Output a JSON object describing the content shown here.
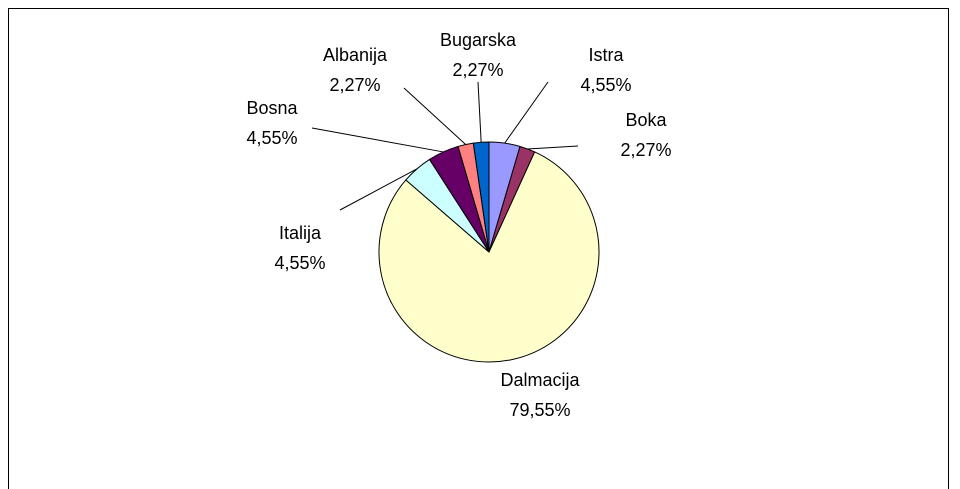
{
  "chart_data": {
    "type": "pie",
    "categories": [
      "Istra",
      "Boka",
      "Dalmacija",
      "Italija",
      "Bosna",
      "Albanija",
      "Bugarska"
    ],
    "values": [
      4.55,
      2.27,
      79.55,
      4.55,
      4.55,
      2.27,
      2.27
    ],
    "value_labels": [
      "4,55%",
      "2,27%",
      "79,55%",
      "4,55%",
      "4,55%",
      "2,27%",
      "2,27%"
    ],
    "colors": [
      "#9999ff",
      "#993366",
      "#ffffcc",
      "#ccffff",
      "#660066",
      "#ff8080",
      "#0066cc"
    ]
  }
}
